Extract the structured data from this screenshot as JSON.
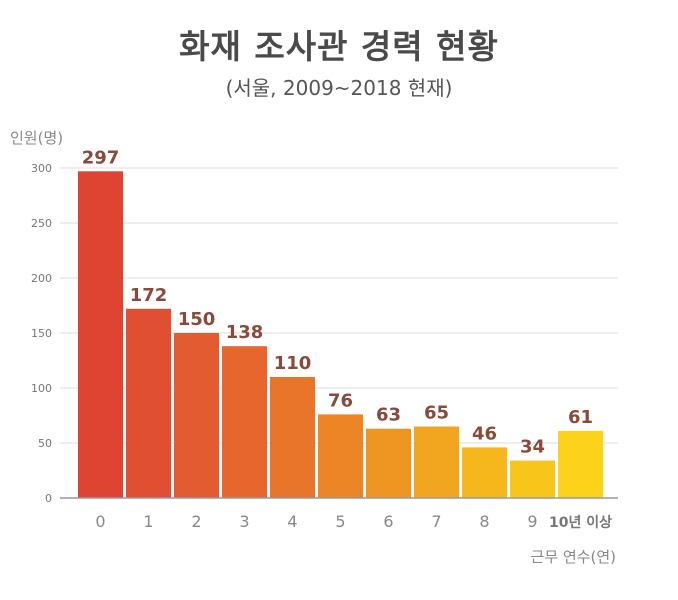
{
  "chart_data": {
    "type": "bar",
    "title": "화재 조사관 경력 현황",
    "subtitle": "(서울, 2009~2018 현재)",
    "ylabel": "인원(명)",
    "xlabel": "근무 연수(연)",
    "categories": [
      "0",
      "1",
      "2",
      "3",
      "4",
      "5",
      "6",
      "7",
      "8",
      "9",
      "10년 이상"
    ],
    "values": [
      297,
      172,
      150,
      138,
      110,
      76,
      63,
      65,
      46,
      34,
      61
    ],
    "ylim": [
      0,
      300
    ],
    "yticks": [
      0,
      50,
      100,
      150,
      200,
      250,
      300
    ],
    "grid": true,
    "legend": "none",
    "colors": [
      "#df4433",
      "#e14f32",
      "#e35b30",
      "#e6662e",
      "#e9752a",
      "#ec8526",
      "#ef9622",
      "#f2a61f",
      "#f5b71c",
      "#f8c51a",
      "#fcd31a"
    ]
  }
}
